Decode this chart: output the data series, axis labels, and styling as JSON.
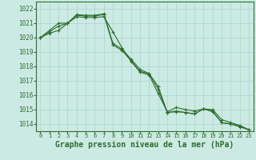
{
  "background_color": "#cceae4",
  "grid_color": "#aad4cc",
  "line_color": "#2d6e2d",
  "marker_color": "#2d6e2d",
  "xlabel": "Graphe pression niveau de la mer (hPa)",
  "xlabel_fontsize": 7,
  "ylim": [
    1013.5,
    1022.5
  ],
  "xlim": [
    -0.5,
    23.5
  ],
  "yticks": [
    1014,
    1015,
    1016,
    1017,
    1018,
    1019,
    1020,
    1021,
    1022
  ],
  "xticks": [
    0,
    1,
    2,
    3,
    4,
    5,
    6,
    7,
    8,
    9,
    10,
    11,
    12,
    13,
    14,
    15,
    16,
    17,
    18,
    19,
    20,
    21,
    22,
    23
  ],
  "series1": [
    1020.0,
    1020.5,
    1021.0,
    1021.0,
    1021.6,
    1021.55,
    1021.55,
    1021.65,
    1019.6,
    1019.2,
    1018.5,
    1017.8,
    1017.5,
    1016.6,
    1014.8,
    1014.85,
    1014.8,
    1014.7,
    1015.05,
    1014.9,
    1014.1,
    1014.0,
    1013.8,
    1013.6
  ],
  "series2": [
    1020.0,
    1020.3,
    1020.5,
    1021.0,
    1021.45,
    1021.4,
    1021.4,
    1021.45,
    1020.4,
    1019.3,
    1018.35,
    1017.6,
    1017.4,
    1016.1,
    1014.85,
    1015.15,
    1015.0,
    1014.9,
    1015.05,
    1015.0,
    1014.3,
    1014.1,
    1013.9,
    1013.6
  ],
  "series3": [
    1020.0,
    1020.4,
    1020.8,
    1021.0,
    1021.55,
    1021.5,
    1021.5,
    1021.6,
    1019.5,
    1019.1,
    1018.4,
    1017.65,
    1017.5,
    1016.4,
    1014.8,
    1014.9,
    1014.8,
    1014.7,
    1015.05,
    1014.85,
    1014.1,
    1014.0,
    1013.85,
    1013.6
  ]
}
